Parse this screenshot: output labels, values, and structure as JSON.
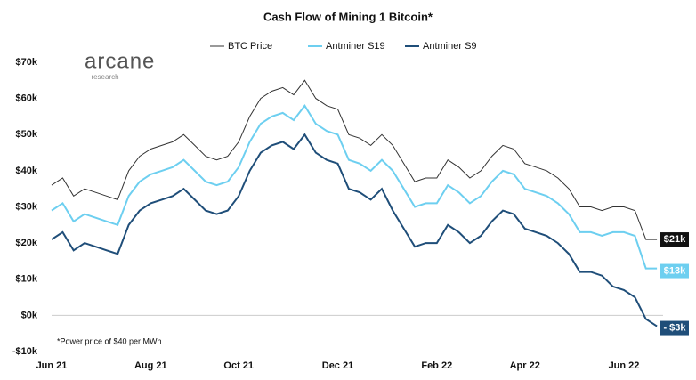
{
  "chart_data": {
    "type": "line",
    "title": "Cash Flow of Mining 1 Bitcoin*",
    "annotation": "*Power price of $40 per MWh",
    "logo": {
      "name": "arcane",
      "sub": "research"
    },
    "categories": [
      "Jun 21",
      null,
      null,
      null,
      null,
      null,
      null,
      null,
      null,
      "Aug 21",
      null,
      null,
      null,
      null,
      null,
      null,
      null,
      "Oct 21",
      null,
      null,
      null,
      null,
      null,
      null,
      null,
      null,
      "Dec 21",
      null,
      null,
      null,
      null,
      null,
      null,
      null,
      null,
      "Feb 22",
      null,
      null,
      null,
      null,
      null,
      null,
      null,
      "Apr 22",
      null,
      null,
      null,
      null,
      null,
      null,
      null,
      null,
      "Jun 22",
      null,
      null,
      null
    ],
    "ylim": [
      -10,
      70
    ],
    "yticks": [
      {
        "value": -10,
        "label": "-$10k"
      },
      {
        "value": 0,
        "label": "$0k"
      },
      {
        "value": 10,
        "label": "$10k"
      },
      {
        "value": 20,
        "label": "$20k"
      },
      {
        "value": 30,
        "label": "$30k"
      },
      {
        "value": 40,
        "label": "$40k"
      },
      {
        "value": 50,
        "label": "$50k"
      },
      {
        "value": 60,
        "label": "$60k"
      },
      {
        "value": 70,
        "label": "$70k"
      }
    ],
    "series": [
      {
        "name": "BTC Price",
        "color": "#333333",
        "values": [
          36,
          38,
          33,
          35,
          34,
          33,
          32,
          40,
          44,
          46,
          47,
          48,
          50,
          47,
          44,
          43,
          44,
          48,
          55,
          60,
          62,
          63,
          61,
          65,
          60,
          58,
          57,
          50,
          49,
          47,
          50,
          47,
          42,
          37,
          38,
          38,
          43,
          41,
          38,
          40,
          44,
          47,
          46,
          42,
          41,
          40,
          38,
          35,
          30,
          30,
          29,
          30,
          30,
          29,
          21,
          21
        ],
        "value_labels": [
          null,
          null,
          null,
          null,
          null,
          null,
          null,
          null,
          null,
          null,
          null,
          null,
          null,
          null,
          null,
          null,
          null,
          null,
          null,
          null,
          null,
          null,
          null,
          null,
          null,
          null,
          null,
          null,
          null,
          null,
          null,
          null,
          null,
          null,
          null,
          null,
          null,
          null,
          null,
          null,
          null,
          null,
          null,
          null,
          null,
          null,
          null,
          null,
          null,
          null,
          null,
          null,
          null,
          null,
          null,
          "$21k"
        ]
      },
      {
        "name": "Antminer S19",
        "color": "#6dcff0",
        "values": [
          29,
          31,
          26,
          28,
          27,
          26,
          25,
          33,
          37,
          39,
          40,
          41,
          43,
          40,
          37,
          36,
          37,
          41,
          48,
          53,
          55,
          56,
          54,
          58,
          53,
          51,
          50,
          43,
          42,
          40,
          43,
          40,
          35,
          30,
          31,
          31,
          36,
          34,
          31,
          33,
          37,
          40,
          39,
          35,
          34,
          33,
          31,
          28,
          23,
          23,
          22,
          23,
          23,
          22,
          13,
          13
        ],
        "value_labels": [
          null,
          null,
          null,
          null,
          null,
          null,
          null,
          null,
          null,
          null,
          null,
          null,
          null,
          null,
          null,
          null,
          null,
          null,
          null,
          null,
          null,
          null,
          null,
          null,
          null,
          null,
          null,
          null,
          null,
          null,
          null,
          null,
          null,
          null,
          null,
          null,
          null,
          null,
          null,
          null,
          null,
          null,
          null,
          null,
          null,
          null,
          null,
          null,
          null,
          null,
          null,
          null,
          null,
          null,
          null,
          "$13k"
        ]
      },
      {
        "name": "Antminer S9",
        "color": "#1f4e79",
        "values": [
          21,
          23,
          18,
          20,
          19,
          18,
          17,
          25,
          29,
          31,
          32,
          33,
          35,
          32,
          29,
          28,
          29,
          33,
          40,
          45,
          47,
          48,
          46,
          50,
          45,
          43,
          42,
          35,
          34,
          32,
          35,
          29,
          24,
          19,
          20,
          20,
          25,
          23,
          20,
          22,
          26,
          29,
          28,
          24,
          23,
          22,
          20,
          17,
          12,
          12,
          11,
          8,
          7,
          5,
          -1,
          -3
        ],
        "value_labels": [
          null,
          null,
          null,
          null,
          null,
          null,
          null,
          null,
          null,
          null,
          null,
          null,
          null,
          null,
          null,
          null,
          null,
          null,
          null,
          null,
          null,
          null,
          null,
          null,
          null,
          null,
          null,
          null,
          null,
          null,
          null,
          null,
          null,
          null,
          null,
          null,
          null,
          null,
          null,
          null,
          null,
          null,
          null,
          null,
          null,
          null,
          null,
          null,
          null,
          null,
          null,
          null,
          null,
          null,
          null,
          "- $3k"
        ]
      }
    ]
  }
}
